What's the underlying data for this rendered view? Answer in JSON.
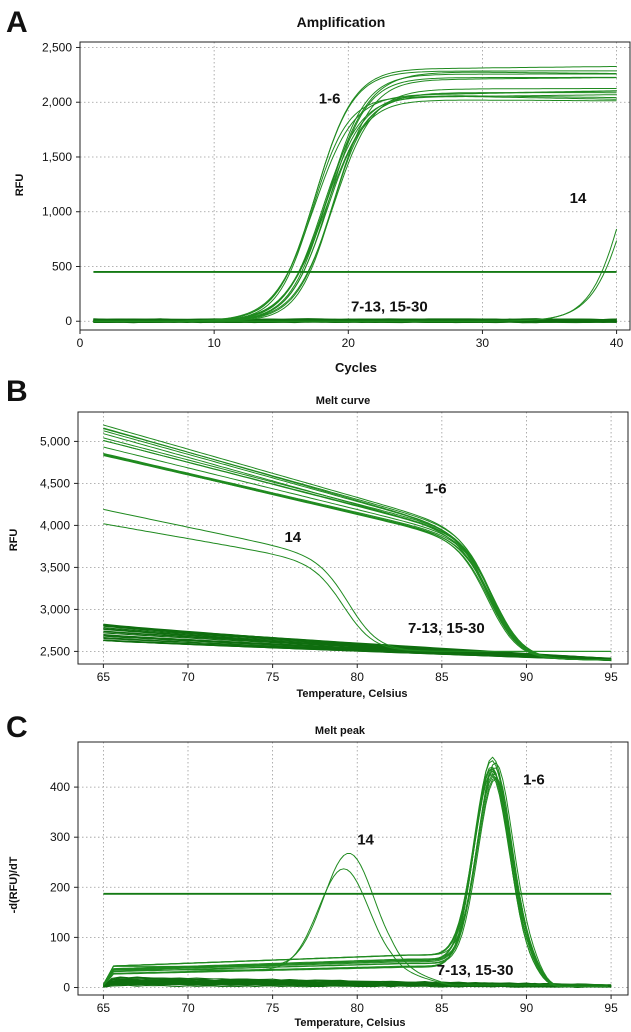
{
  "colors": {
    "curve": "#1f8a1f",
    "curve_dark": "#0f6e0f",
    "threshold": "#147a14",
    "grid": "#9a9a9a",
    "axis": "#222222"
  },
  "panels": [
    {
      "letter": "A",
      "chart_data": {
        "type": "line",
        "title": "Amplification",
        "xlabel": "Cycles",
        "ylabel": "RFU",
        "xlim": [
          0,
          41
        ],
        "ylim": [
          -80,
          2550
        ],
        "xticks": [
          0,
          10,
          20,
          30,
          40
        ],
        "yticks": [
          0,
          500,
          1000,
          1500,
          2000,
          2500
        ],
        "xtick_labels": [
          "0",
          "10",
          "20",
          "30",
          "40"
        ],
        "ytick_labels": [
          "0",
          "500",
          "1,000",
          "1,500",
          "2,000",
          "2,500"
        ],
        "grid": true,
        "threshold": 450,
        "groups": [
          {
            "label": "1-6",
            "count": 14,
            "midpoint": [
              17.2,
              19.0
            ],
            "plateau": [
              2020,
              2330
            ],
            "slope": [
              1.25,
              1.55
            ]
          },
          {
            "label": "14",
            "count": 2,
            "midpoint": [
              40.8,
              41.3
            ],
            "plateau": [
              2400,
              2600
            ],
            "slope": [
              1.3,
              1.4
            ]
          },
          {
            "label": "7-13, 15-30",
            "count": 24,
            "baseline": [
              -10,
              20
            ]
          }
        ],
        "annotations": [
          {
            "text": "1-6",
            "x": 17.8,
            "y": 1990
          },
          {
            "text": "14",
            "x": 36.5,
            "y": 1080
          },
          {
            "text": "7-13, 15-30",
            "x": 20.2,
            "y": 90
          }
        ]
      }
    },
    {
      "letter": "B",
      "chart_data": {
        "type": "line",
        "title": "Melt curve",
        "xlabel": "Temperature, Celsius",
        "ylabel": "RFU",
        "xlim": [
          63.5,
          96
        ],
        "ylim": [
          2350,
          5350
        ],
        "xticks": [
          65,
          70,
          75,
          80,
          85,
          90,
          95
        ],
        "yticks": [
          2500,
          3000,
          3500,
          4000,
          4500,
          5000
        ],
        "xtick_labels": [
          "65",
          "70",
          "75",
          "80",
          "85",
          "90",
          "95"
        ],
        "ytick_labels": [
          "2,500",
          "3,000",
          "3,500",
          "4,000",
          "4,500",
          "5,000"
        ],
        "grid": true,
        "groups": [
          {
            "label": "1-6",
            "count": 14,
            "start": [
              4790,
              5250
            ],
            "shoulder": [
              3880,
              4050
            ],
            "tm": 88.0,
            "end": 2400
          },
          {
            "label": "14",
            "count": 2,
            "start": [
              4020,
              4190
            ],
            "shoulder": [
              3620,
              3700
            ],
            "tm": 79.3,
            "end": 2500
          },
          {
            "label": "7-13, 15-30",
            "count": 24,
            "start": [
              2610,
              2830
            ],
            "end": [
              2390,
              2420
            ]
          }
        ],
        "annotations": [
          {
            "text": "1-6",
            "x": 84.0,
            "y": 4380
          },
          {
            "text": "14",
            "x": 75.7,
            "y": 3800
          },
          {
            "text": "7-13, 15-30",
            "x": 83.0,
            "y": 2720
          }
        ]
      }
    },
    {
      "letter": "C",
      "chart_data": {
        "type": "line",
        "title": "Melt peak",
        "xlabel": "Temperature, Celsius",
        "ylabel": "-d(RFU)/dT",
        "xlim": [
          63.5,
          96
        ],
        "ylim": [
          -15,
          490
        ],
        "xticks": [
          65,
          70,
          75,
          80,
          85,
          90,
          95
        ],
        "yticks": [
          0,
          100,
          200,
          300,
          400
        ],
        "xtick_labels": [
          "65",
          "70",
          "75",
          "80",
          "85",
          "90",
          "95"
        ],
        "ytick_labels": [
          "0",
          "100",
          "200",
          "300",
          "400"
        ],
        "grid": true,
        "threshold": 187,
        "groups": [
          {
            "label": "1-6",
            "count": 14,
            "peak_x": [
              87.9,
              88.2
            ],
            "peak_y": [
              395,
              470
            ],
            "baseline": [
              40,
              65
            ]
          },
          {
            "label": "14",
            "count": 2,
            "peak_x": [
              79.2,
              79.5
            ],
            "peak_y": [
              237,
              268
            ],
            "baseline": [
              35,
              42
            ]
          },
          {
            "label": "7-13, 15-30",
            "count": 24,
            "baseline": [
              3,
              22
            ]
          }
        ],
        "annotations": [
          {
            "text": "1-6",
            "x": 89.8,
            "y": 405
          },
          {
            "text": "14",
            "x": 80.0,
            "y": 285
          },
          {
            "text": "7-13, 15-30",
            "x": 84.7,
            "y": 25
          }
        ]
      }
    }
  ]
}
